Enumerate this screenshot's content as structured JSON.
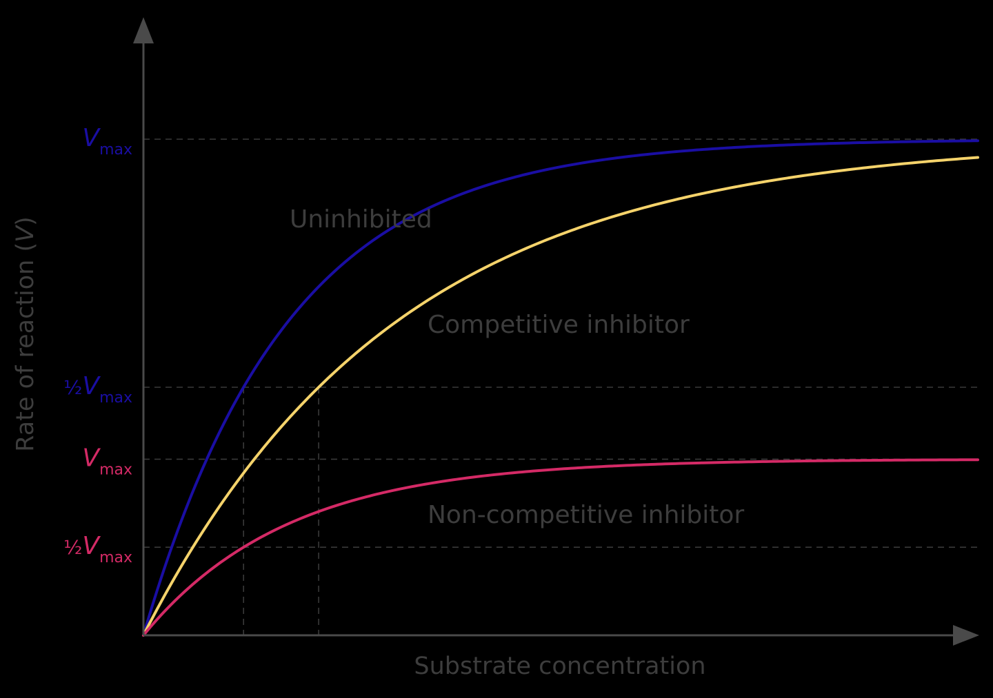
{
  "chart_data": {
    "type": "line",
    "xlabel": "Substrate concentration",
    "ylabel_prefix": "Rate of reaction (",
    "ylabel_symbol": "V",
    "ylabel_suffix": ")",
    "xlim": [
      0,
      20
    ],
    "ylim": [
      0,
      1.2
    ],
    "grid": false,
    "legend": "none",
    "series": [
      {
        "name": "Uninhibited",
        "color": "#1a0ea3",
        "vmax": 1.0,
        "half_vmax_x": 2.4,
        "values_desc": "saturating hyperbola rising to Vmax"
      },
      {
        "name": "Competitive inhibitor",
        "color": "#f5d36b",
        "vmax": 1.0,
        "half_vmax_x": 4.2,
        "values_desc": "saturating curve reaching same Vmax at high substrate"
      },
      {
        "name": "Non-competitive inhibitor",
        "color": "#d42a66",
        "vmax": 0.355,
        "half_vmax_x": 2.4,
        "values_desc": "saturating curve with lowered Vmax"
      }
    ],
    "tick_labels": [
      {
        "id": "vmax_uninhibited",
        "frac": "",
        "main": "V",
        "sub": "max",
        "color": "#1a0ea3",
        "value": 1.0
      },
      {
        "id": "half_vmax_uninhibited",
        "frac": "½",
        "main": "V",
        "sub": "max",
        "color": "#1a0ea3",
        "value": 0.5
      },
      {
        "id": "vmax_noncompetitive",
        "frac": "",
        "main": "V",
        "sub": "max",
        "color": "#d42a66",
        "value": 0.355
      },
      {
        "id": "half_vmax_noncompetitive",
        "frac": "½",
        "main": "V",
        "sub": "max",
        "color": "#d42a66",
        "value": 0.1775
      }
    ],
    "annotations": [
      {
        "id": "label_uninhibited",
        "text": "Uninhibited"
      },
      {
        "id": "label_competitive",
        "text": "Competitive inhibitor"
      },
      {
        "id": "label_noncompetitive",
        "text": "Non-competitive inhibitor"
      }
    ],
    "km_markers": [
      2.4,
      4.2
    ]
  }
}
